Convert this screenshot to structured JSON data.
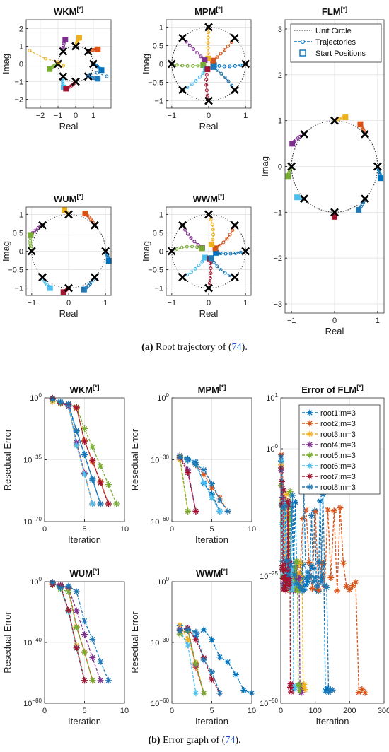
{
  "captions": {
    "a": {
      "label": "(a)",
      "text": " Root trajectory of (",
      "ref": "74",
      "end": ")."
    },
    "b": {
      "label": "(b)",
      "text": " Error graph of (",
      "ref": "74",
      "end": ")."
    }
  },
  "colors": [
    "#0072BD",
    "#D95319",
    "#EDB120",
    "#7E2F8E",
    "#77AC30",
    "#4DBEEE",
    "#A2142F",
    "#1F77B4"
  ],
  "chart_data": [
    {
      "id": "wkm-roots",
      "type": "scatter",
      "title": "WKM",
      "title_sup": "[*]",
      "xlabel": "Real",
      "ylabel": "Imag",
      "xlim": [
        -2.8,
        2.0
      ],
      "ylim": [
        -2.5,
        2.5
      ],
      "xticks": [
        -2,
        -1,
        0,
        1
      ],
      "xtick_labels": [
        "−2",
        "−1",
        "0",
        "1"
      ],
      "yticks": [
        -2,
        -1,
        0,
        1,
        2
      ],
      "ytick_labels": [
        "−2",
        "−1",
        "0",
        "1",
        "2"
      ],
      "grid": true,
      "unit_circle": true,
      "n_roots": 8,
      "radius_start": 1.5,
      "seed": 11,
      "series": [
        {
          "x": [
            -2.6,
            -1.7,
            -1.0,
            -0.7
          ],
          "y": [
            0.75,
            0.3,
            0.1,
            -0.1
          ]
        },
        {
          "x": [
            1.75,
            1.2,
            0.8,
            0.7
          ],
          "y": [
            -0.7,
            -0.5,
            -0.6,
            -0.7
          ]
        }
      ]
    },
    {
      "id": "mpm-roots",
      "type": "scatter",
      "title": "MPM",
      "title_sup": "[*]",
      "xlabel": "Real",
      "ylabel": "Imag",
      "xlim": [
        -1.15,
        1.15
      ],
      "ylim": [
        -1.2,
        1.2
      ],
      "xticks": [
        -1,
        0,
        1
      ],
      "xtick_labels": [
        "−1",
        "0",
        "1"
      ],
      "yticks": [
        -1,
        -0.5,
        0,
        0.5,
        1
      ],
      "ytick_labels": [
        "−1",
        "−0.5",
        "0",
        "0.5",
        "1"
      ],
      "grid": true,
      "unit_circle": true,
      "n_roots": 8,
      "radius_start": 0.15,
      "seed": 23
    },
    {
      "id": "flm-roots",
      "type": "scatter",
      "title": "FLM",
      "title_sup": "[*]",
      "xlabel": "Real",
      "ylabel": "Imag",
      "xlim": [
        -1.15,
        1.15
      ],
      "ylim": [
        -3.2,
        3.2
      ],
      "xticks": [
        -1,
        0,
        1
      ],
      "xtick_labels": [
        "−1",
        "0",
        "1"
      ],
      "yticks": [
        -3,
        -2,
        -1,
        0,
        1,
        2,
        3
      ],
      "ytick_labels": [
        "−3",
        "−2",
        "−1",
        "0",
        "1",
        "2",
        "3"
      ],
      "grid": true,
      "unit_circle": true,
      "n_roots": 8,
      "radius_start": 1.1,
      "seed": 5,
      "legend": {
        "position": "top-right",
        "entries": [
          "Unit Circle",
          "Trajectories",
          "Start Positions"
        ]
      }
    },
    {
      "id": "wum-roots",
      "type": "scatter",
      "title": "WUM",
      "title_sup": "[*]",
      "xlabel": "Real",
      "ylabel": "Imag",
      "xlim": [
        -1.15,
        1.15
      ],
      "ylim": [
        -1.2,
        1.2
      ],
      "xticks": [
        -1,
        0,
        1
      ],
      "xtick_labels": [
        "−1",
        "0",
        "1"
      ],
      "yticks": [
        -1,
        -0.5,
        0,
        0.5,
        1
      ],
      "ytick_labels": [
        "−1",
        "−0.5",
        "0",
        "0.5",
        "1"
      ],
      "grid": true,
      "unit_circle": true,
      "n_roots": 8,
      "radius_start": 1.12,
      "seed": 7
    },
    {
      "id": "wwm-roots",
      "type": "scatter",
      "title": "WWM",
      "title_sup": "[*]",
      "xlabel": "Real",
      "ylabel": "Imag",
      "xlim": [
        -1.15,
        1.15
      ],
      "ylim": [
        -1.2,
        1.2
      ],
      "xticks": [
        -1,
        0,
        1
      ],
      "xtick_labels": [
        "−1",
        "0",
        "1"
      ],
      "yticks": [
        -1,
        -0.5,
        0,
        0.5,
        1
      ],
      "ytick_labels": [
        "−1",
        "−0.5",
        "0",
        "0.5",
        "1"
      ],
      "grid": true,
      "unit_circle": true,
      "n_roots": 8,
      "radius_start": 0.2,
      "seed": 31
    },
    {
      "id": "wkm-error",
      "type": "line",
      "title": "WKM",
      "title_sup": "[*]",
      "xlabel": "Iteration",
      "ylabel": "Resedual Error",
      "log_y": true,
      "xlim": [
        0,
        10
      ],
      "ylim": [
        -70,
        0
      ],
      "xticks": [
        0,
        5,
        10
      ],
      "xtick_labels": [
        "0",
        "5",
        "10"
      ],
      "yticks": [
        0,
        -35,
        -70
      ],
      "ytick_labels": [
        "10^0",
        "10^-35",
        "10^-70"
      ],
      "grid": true,
      "n_series": 8,
      "first_iter": 1,
      "last_iter": [
        7,
        8,
        6,
        6,
        9,
        6,
        8,
        7
      ],
      "floor": -60,
      "jitter": 2
    },
    {
      "id": "mpm-error",
      "type": "line",
      "title": "MPM",
      "title_sup": "[*]",
      "xlabel": "Iteration",
      "ylabel": "Resedual Error",
      "log_y": true,
      "xlim": [
        0,
        10
      ],
      "ylim": [
        -60,
        0
      ],
      "xticks": [
        0,
        5,
        10
      ],
      "xtick_labels": [
        "0",
        "5",
        "10"
      ],
      "yticks": [
        0,
        -30,
        -60
      ],
      "ytick_labels": [
        "10^0",
        "10^-30",
        "10^-60"
      ],
      "grid": true,
      "n_series": 8,
      "first_iter": 1,
      "last_iter": [
        6,
        7,
        2,
        3,
        2,
        6,
        3,
        7
      ],
      "floor": -55,
      "start": -27,
      "jitter": 3
    },
    {
      "id": "flm-error",
      "type": "line",
      "title": "Error of FLM",
      "title_sup": "[*]",
      "xlabel": "Iteration",
      "ylabel": "",
      "log_y": true,
      "xlim": [
        0,
        300
      ],
      "ylim": [
        -50,
        10
      ],
      "xticks": [
        0,
        100,
        200,
        300
      ],
      "xtick_labels": [
        "0",
        "100",
        "200",
        "300"
      ],
      "yticks": [
        10,
        0,
        -25,
        -50
      ],
      "ytick_labels": [
        "10^1",
        "10^0",
        "10^-25",
        "10^-50"
      ],
      "grid": true,
      "n_series": 8,
      "mode": "long",
      "last_iter": [
        140,
        245,
        70,
        60,
        55,
        40,
        30,
        150
      ],
      "floor": -48,
      "legend": {
        "position": "top-right",
        "entries": [
          "root1;m=3",
          "root2;m=3",
          "root3;m=3",
          "root4;m=3",
          "root5;m=3",
          "root6;m=3",
          "root7;m=3",
          "root8;m=3"
        ]
      }
    },
    {
      "id": "wum-error",
      "type": "line",
      "title": "WUM",
      "title_sup": "[*]",
      "xlabel": "Iteration",
      "ylabel": "Resedual Error",
      "log_y": true,
      "xlim": [
        0,
        10
      ],
      "ylim": [
        -80,
        0
      ],
      "xticks": [
        0,
        5,
        10
      ],
      "xtick_labels": [
        "0",
        "5",
        "10"
      ],
      "yticks": [
        0,
        -40,
        -80
      ],
      "ytick_labels": [
        "10^0",
        "10^-40",
        "10^-80"
      ],
      "grid": true,
      "n_series": 8,
      "first_iter": 1,
      "last_iter": [
        5,
        6,
        5,
        7,
        6,
        5,
        5,
        8
      ],
      "floor": -65,
      "jitter": 3
    },
    {
      "id": "wwm-error",
      "type": "line",
      "title": "WWM",
      "title_sup": "[*]",
      "xlabel": "Iteration",
      "ylabel": "Resedual Error",
      "log_y": true,
      "xlim": [
        0,
        10
      ],
      "ylim": [
        -60,
        0
      ],
      "xticks": [
        0,
        5,
        10
      ],
      "xtick_labels": [
        "0",
        "5",
        "10"
      ],
      "yticks": [
        0,
        -30,
        -60
      ],
      "ytick_labels": [
        "10^0",
        "10^-30",
        "10^-60"
      ],
      "grid": true,
      "n_series": 8,
      "first_iter": 1,
      "last_iter": [
        10,
        4,
        4,
        4,
        4,
        3,
        6,
        6
      ],
      "floor": -55,
      "start": -20,
      "jitter": 6
    }
  ]
}
